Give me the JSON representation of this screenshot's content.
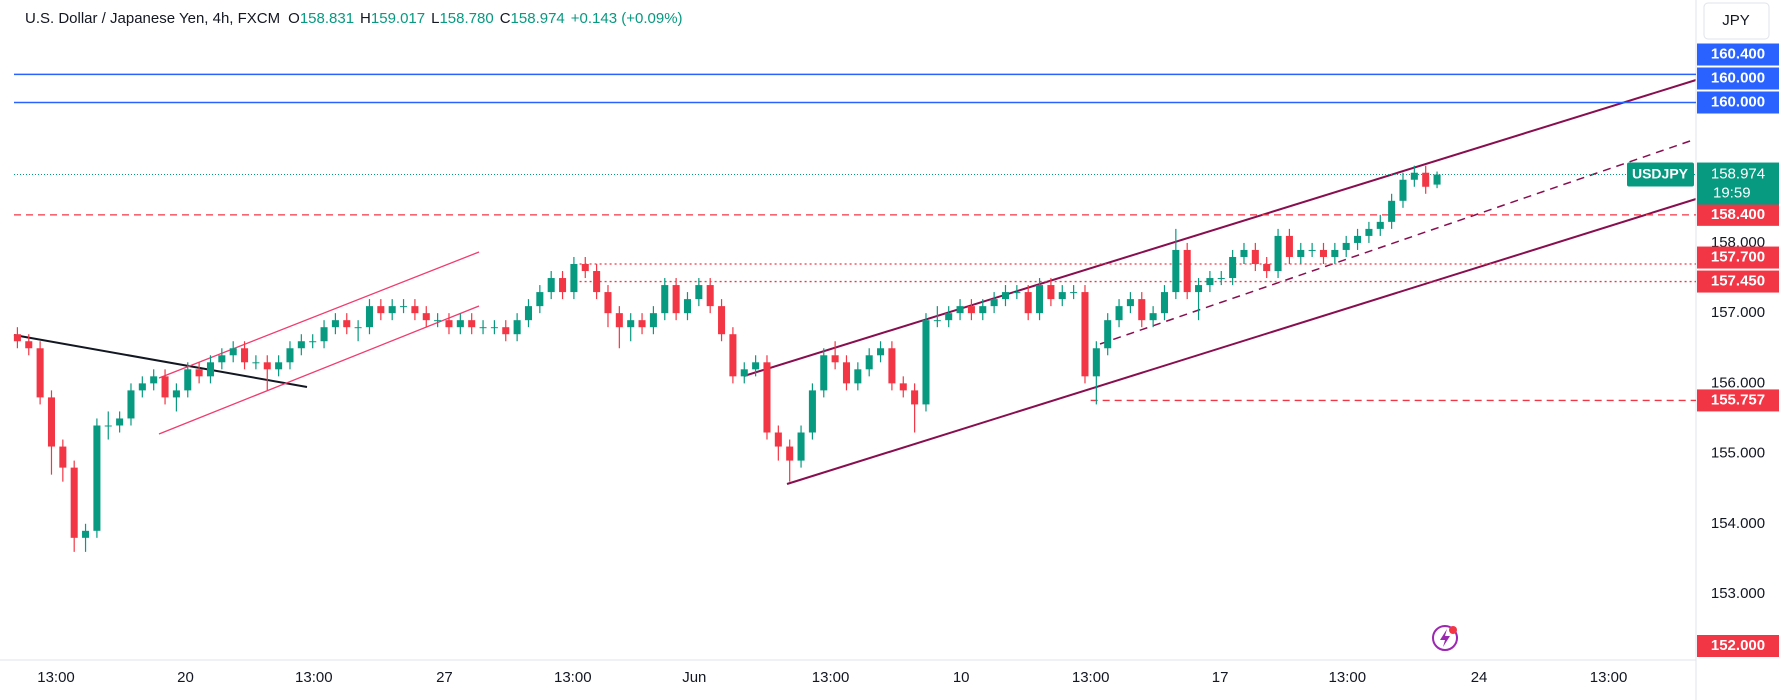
{
  "header": {
    "symbol": "U.S. Dollar / Japanese Yen, 4h, FXCM",
    "ohlc": [
      {
        "key": "O",
        "value": "158.831"
      },
      {
        "key": "H",
        "value": "159.017"
      },
      {
        "key": "L",
        "value": "158.780"
      },
      {
        "key": "C",
        "value": "158.974"
      }
    ],
    "change": "+0.143 (+0.09%)"
  },
  "currency": "JPY",
  "chart_data": {
    "type": "candlestick",
    "up_color": "#089981",
    "down_color": "#f23645",
    "open": [
      156.7,
      156.6,
      156.5,
      155.8,
      155.1,
      154.8,
      153.8,
      153.9,
      155.4,
      155.4,
      155.5,
      155.9,
      156.0,
      156.1,
      155.8,
      155.9,
      156.2,
      156.1,
      156.3,
      156.4,
      156.5,
      156.3,
      156.3,
      156.2,
      156.3,
      156.5,
      156.6,
      156.6,
      156.8,
      156.9,
      156.8,
      156.8,
      157.1,
      157.0,
      157.1,
      157.1,
      157.0,
      156.9,
      156.9,
      156.8,
      156.9,
      156.8,
      156.8,
      156.8,
      156.7,
      156.9,
      157.1,
      157.3,
      157.5,
      157.3,
      157.7,
      157.6,
      157.3,
      157.0,
      156.8,
      156.9,
      156.8,
      157.0,
      157.4,
      157.0,
      157.2,
      157.4,
      157.1,
      156.7,
      156.1,
      156.2,
      156.3,
      155.3,
      155.1,
      154.9,
      155.3,
      155.9,
      156.4,
      156.3,
      156.0,
      156.2,
      156.4,
      156.5,
      156.0,
      155.9,
      155.7,
      156.9,
      156.9,
      157.0,
      157.1,
      157.0,
      157.1,
      157.2,
      157.3,
      157.3,
      157.0,
      157.4,
      157.2,
      157.3,
      157.3,
      156.1,
      156.5,
      156.9,
      157.1,
      157.2,
      156.9,
      157.0,
      157.3,
      157.9,
      157.3,
      157.4,
      157.5,
      157.5,
      157.8,
      157.9,
      157.7,
      157.6,
      158.1,
      157.8,
      157.9,
      157.9,
      157.8,
      157.9,
      158.0,
      158.1,
      158.2,
      158.3,
      158.6,
      158.9,
      159.0,
      158.831
    ],
    "high": [
      156.8,
      156.7,
      156.6,
      155.9,
      155.2,
      154.9,
      154.0,
      155.5,
      155.6,
      155.6,
      156.0,
      156.1,
      156.2,
      156.2,
      156.0,
      156.3,
      156.3,
      156.4,
      156.5,
      156.6,
      156.6,
      156.4,
      156.4,
      156.4,
      156.6,
      156.7,
      156.7,
      156.9,
      157.0,
      157.0,
      156.9,
      157.2,
      157.2,
      157.2,
      157.2,
      157.2,
      157.1,
      157.0,
      157.0,
      157.0,
      157.0,
      156.9,
      156.9,
      156.9,
      157.0,
      157.2,
      157.4,
      157.6,
      157.6,
      157.8,
      157.8,
      157.7,
      157.4,
      157.1,
      157.0,
      157.0,
      157.1,
      157.5,
      157.5,
      157.3,
      157.5,
      157.5,
      157.2,
      156.8,
      156.3,
      156.4,
      156.4,
      155.4,
      155.2,
      155.4,
      156.0,
      156.5,
      156.6,
      156.4,
      156.3,
      156.5,
      156.6,
      156.6,
      156.1,
      156.0,
      157.0,
      157.1,
      157.1,
      157.2,
      157.2,
      157.2,
      157.3,
      157.4,
      157.4,
      157.4,
      157.5,
      157.5,
      157.4,
      157.4,
      157.4,
      156.6,
      157.0,
      157.2,
      157.3,
      157.3,
      157.1,
      157.4,
      158.2,
      158.0,
      157.5,
      157.6,
      157.6,
      157.9,
      158.0,
      158.0,
      157.8,
      158.2,
      158.2,
      158.0,
      158.0,
      158.0,
      158.0,
      158.1,
      158.2,
      158.3,
      158.4,
      158.7,
      159.0,
      159.1,
      159.1,
      159.017
    ],
    "low": [
      156.5,
      156.4,
      155.7,
      154.7,
      154.6,
      153.6,
      153.6,
      153.8,
      155.2,
      155.3,
      155.4,
      155.8,
      155.9,
      155.7,
      155.6,
      155.8,
      156.0,
      156.0,
      156.2,
      156.3,
      156.2,
      156.2,
      155.9,
      156.1,
      156.2,
      156.4,
      156.5,
      156.5,
      156.7,
      156.7,
      156.6,
      156.7,
      156.9,
      156.9,
      157.0,
      156.9,
      156.8,
      156.8,
      156.7,
      156.7,
      156.7,
      156.7,
      156.7,
      156.6,
      156.6,
      156.8,
      157.0,
      157.2,
      157.2,
      157.2,
      157.5,
      157.2,
      156.8,
      156.5,
      156.6,
      156.7,
      156.7,
      156.9,
      156.9,
      156.9,
      157.1,
      157.0,
      156.6,
      156.0,
      156.0,
      156.1,
      155.2,
      154.9,
      154.6,
      154.8,
      155.2,
      155.8,
      156.2,
      155.9,
      155.9,
      156.1,
      156.3,
      155.9,
      155.8,
      155.3,
      155.6,
      156.8,
      156.8,
      156.9,
      156.9,
      156.9,
      157.0,
      157.1,
      157.2,
      156.9,
      156.9,
      157.1,
      157.1,
      157.2,
      156.0,
      155.7,
      156.4,
      156.8,
      157.0,
      156.8,
      156.8,
      156.9,
      157.2,
      157.2,
      156.9,
      157.3,
      157.4,
      157.4,
      157.7,
      157.6,
      157.5,
      157.5,
      157.7,
      157.7,
      157.8,
      157.7,
      157.7,
      157.8,
      157.9,
      158.0,
      158.1,
      158.2,
      158.5,
      158.8,
      158.7,
      158.78
    ],
    "close": [
      156.6,
      156.5,
      155.8,
      155.1,
      154.8,
      153.8,
      153.9,
      155.4,
      155.4,
      155.5,
      155.9,
      156.0,
      156.1,
      155.8,
      155.9,
      156.2,
      156.1,
      156.3,
      156.4,
      156.5,
      156.3,
      156.3,
      156.2,
      156.3,
      156.5,
      156.6,
      156.6,
      156.8,
      156.9,
      156.8,
      156.8,
      157.1,
      157.0,
      157.1,
      157.1,
      157.0,
      156.9,
      156.9,
      156.8,
      156.9,
      156.8,
      156.8,
      156.8,
      156.7,
      156.9,
      157.1,
      157.3,
      157.5,
      157.3,
      157.7,
      157.6,
      157.3,
      157.0,
      156.8,
      156.9,
      156.8,
      157.0,
      157.4,
      157.0,
      157.2,
      157.4,
      157.1,
      156.7,
      156.1,
      156.2,
      156.3,
      155.3,
      155.1,
      154.9,
      155.3,
      155.9,
      156.4,
      156.3,
      156.0,
      156.2,
      156.4,
      156.5,
      156.0,
      155.9,
      155.7,
      156.9,
      156.9,
      157.0,
      157.1,
      157.0,
      157.1,
      157.2,
      157.3,
      157.3,
      157.0,
      157.4,
      157.2,
      157.3,
      157.3,
      156.1,
      156.5,
      156.9,
      157.1,
      157.2,
      156.9,
      157.0,
      157.3,
      157.9,
      157.3,
      157.4,
      157.5,
      157.5,
      157.8,
      157.9,
      157.7,
      157.6,
      158.1,
      157.8,
      157.9,
      157.9,
      157.8,
      157.9,
      158.0,
      158.1,
      158.2,
      158.3,
      158.6,
      158.9,
      159.0,
      158.8,
      158.974
    ],
    "xlim": [
      -0.3,
      147.8
    ],
    "xticks": [
      {
        "value": 3.4,
        "label": "13:00"
      },
      {
        "value": 14.8,
        "label": "20"
      },
      {
        "value": 26.1,
        "label": "13:00"
      },
      {
        "value": 37.6,
        "label": "27"
      },
      {
        "value": 48.9,
        "label": "13:00"
      },
      {
        "value": 59.6,
        "label": "Jun"
      },
      {
        "value": 71.6,
        "label": "13:00"
      },
      {
        "value": 83.1,
        "label": "10"
      },
      {
        "value": 94.5,
        "label": "13:00"
      },
      {
        "value": 105.9,
        "label": "17"
      },
      {
        "value": 117.1,
        "label": "13:00"
      },
      {
        "value": 128.7,
        "label": "24"
      },
      {
        "value": 140.1,
        "label": "13:00"
      }
    ],
    "ylim": [
      152.06,
      161.46
    ],
    "yticks": [
      {
        "value": 153,
        "label": "153.000"
      },
      {
        "value": 154,
        "label": "154.000"
      },
      {
        "value": 155,
        "label": "155.000"
      },
      {
        "value": 156,
        "label": "156.000"
      },
      {
        "value": 157,
        "label": "157.000"
      },
      {
        "value": 158,
        "label": "158.000"
      }
    ],
    "grid": false,
    "levels": [
      {
        "value": 152,
        "label": "152.000",
        "color": "#f23645",
        "line": "none"
      },
      {
        "value": 155.757,
        "label": "155.757",
        "color": "#f23645",
        "line": "dashed",
        "xstart": 94.5
      },
      {
        "value": 157.45,
        "label": "157.450",
        "color": "#f23645",
        "line": "dotted",
        "xstart": 49.5
      },
      {
        "value": 157.7,
        "label": "157.700",
        "color": "#f23645",
        "line": "dotted",
        "xstart": 49.5
      },
      {
        "value": 158.4,
        "label": "158.400",
        "color": "#f23645",
        "line": "dashed"
      },
      {
        "value": 160,
        "label": "160.000",
        "color": "#2962ff",
        "line": "solid"
      },
      {
        "value": 160,
        "label": "160.000",
        "color": "#2962ff",
        "line": "none"
      },
      {
        "value": 160.4,
        "label": "160.400",
        "color": "#2962ff",
        "line": "solid"
      }
    ],
    "last": {
      "value": 158.974,
      "label": "158.974",
      "countdown": "19:59",
      "symbol": "USDJPY",
      "color": "#089981"
    }
  }
}
